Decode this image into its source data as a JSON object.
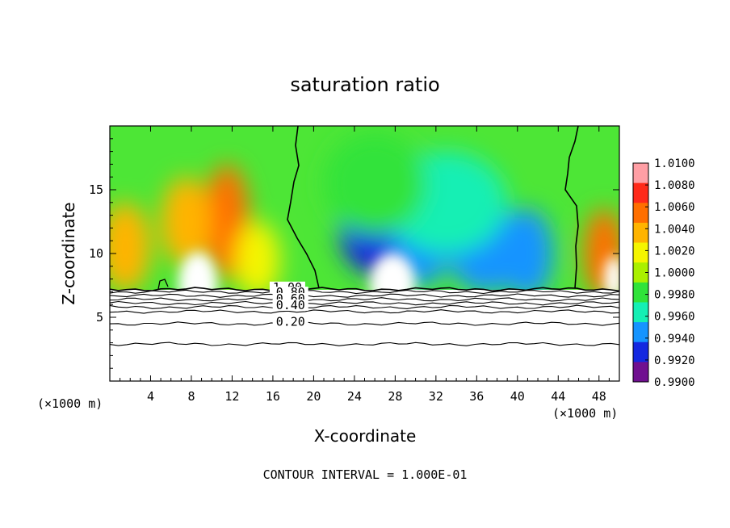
{
  "chart_data": {
    "type": "heatmap",
    "title": "saturation ratio",
    "xlabel": "X-coordinate",
    "ylabel": "Z-coordinate",
    "x_unit_left": "(×1000 m)",
    "x_unit_right": "(×1000 m)",
    "footer": "CONTOUR INTERVAL = 1.000E-01",
    "xlim": [
      0,
      50
    ],
    "ylim": [
      0,
      20
    ],
    "x_ticks": [
      4,
      8,
      12,
      16,
      20,
      24,
      28,
      32,
      36,
      40,
      44,
      48
    ],
    "y_ticks": [
      5,
      10,
      15
    ],
    "colorbar": {
      "ticks": [
        "1.0100",
        "1.0080",
        "1.0060",
        "1.0040",
        "1.0020",
        "1.0000",
        "0.9980",
        "0.9960",
        "0.9940",
        "0.9920",
        "0.9900"
      ],
      "values": [
        1.01,
        1.008,
        1.006,
        1.004,
        1.002,
        1.0,
        0.998,
        0.996,
        0.994,
        0.992,
        0.99
      ],
      "colors": [
        "#ff9fa5",
        "#ff2a1a",
        "#ff6f00",
        "#ffb400",
        "#f5f500",
        "#aaf000",
        "#30e33a",
        "#15efb4",
        "#1594ff",
        "#1428e0",
        "#701090"
      ]
    },
    "cloud_base_z": 7.2,
    "contour_labels": [
      {
        "text": "1.00",
        "x": 16,
        "z": 7.1
      },
      {
        "text": "0.80",
        "x": 16.3,
        "z": 6.7
      },
      {
        "text": "0.60",
        "x": 16.3,
        "z": 6.2
      },
      {
        "text": "0.40",
        "x": 16.3,
        "z": 5.7
      },
      {
        "text": "0.20",
        "x": 16.3,
        "z": 4.4
      }
    ],
    "contour_levels_z": [
      7.2,
      7.0,
      6.7,
      6.4,
      6.1,
      5.8,
      5.45,
      4.5,
      2.9
    ],
    "field_blobs": [
      {
        "value": 1.0068,
        "x": 11.5,
        "z": 12.5,
        "rx": 2.2,
        "rz": 4.5
      },
      {
        "value": 1.005,
        "x": 7.5,
        "z": 12.5,
        "rx": 2.5,
        "rz": 3.5
      },
      {
        "value": 1.0045,
        "x": 1.5,
        "z": 10.5,
        "rx": 2.5,
        "rz": 3.5
      },
      {
        "value": 1.003,
        "x": 14.5,
        "z": 9.5,
        "rx": 2.2,
        "rz": 3.0
      },
      {
        "value": 1.0058,
        "x": 48.5,
        "z": 10.0,
        "rx": 2.0,
        "rz": 3.5
      },
      {
        "value": 0.9905,
        "x": 27.5,
        "z": 10.5,
        "rx": 3.0,
        "rz": 2.5
      },
      {
        "value": 0.9925,
        "x": 25.5,
        "z": 12.0,
        "rx": 3.0,
        "rz": 3.5
      },
      {
        "value": 0.994,
        "x": 30.5,
        "z": 11.0,
        "rx": 3.0,
        "rz": 3.5
      },
      {
        "value": 0.9935,
        "x": 37.0,
        "z": 10.5,
        "rx": 4.0,
        "rz": 3.5
      },
      {
        "value": 0.994,
        "x": 41.0,
        "z": 10.0,
        "rx": 2.5,
        "rz": 3.5
      },
      {
        "value": 0.9962,
        "x": 33.0,
        "z": 14.0,
        "rx": 6.0,
        "rz": 4.0
      },
      {
        "value": 0.9975,
        "x": 26.0,
        "z": 15.5,
        "rx": 5.0,
        "rz": 4.0
      }
    ]
  }
}
